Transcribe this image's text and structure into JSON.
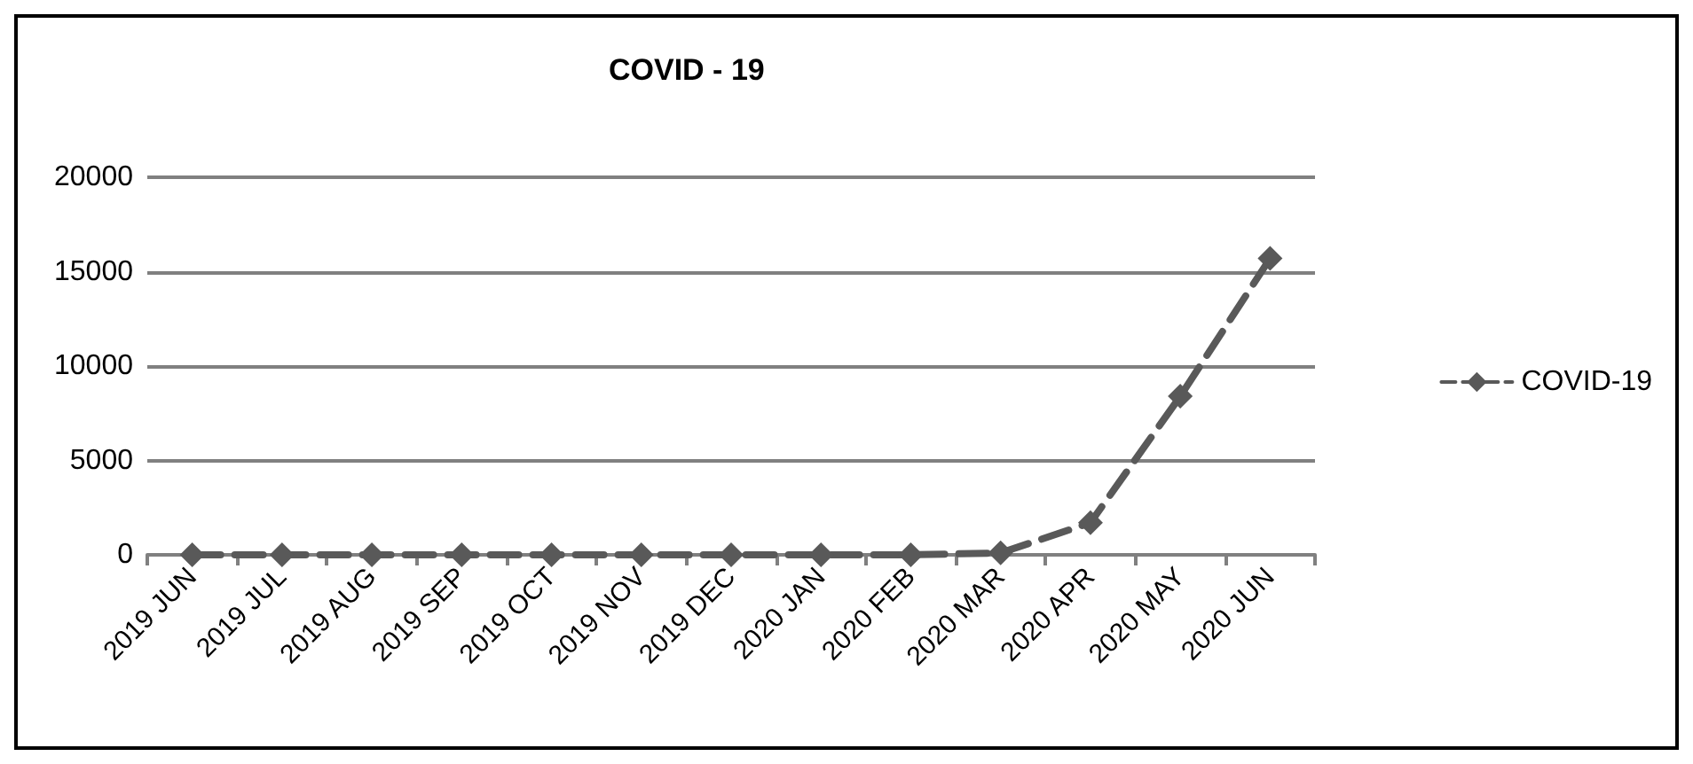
{
  "chart_data": {
    "type": "line",
    "title": "COVID - 19",
    "categories": [
      "2019 JUN",
      "2019 JUL",
      "2019 AUG",
      "2019 SEP",
      "2019 OCT",
      "2019 NOV",
      "2019 DEC",
      "2020 JAN",
      "2020 FEB",
      "2020 MAR",
      "2020 APR",
      "2020 MAY",
      "2020 JUN"
    ],
    "series": [
      {
        "name": "COVID-19",
        "color": "#595959",
        "values": [
          0,
          0,
          0,
          0,
          0,
          0,
          0,
          0,
          0,
          100,
          1700,
          8400,
          15700
        ]
      }
    ],
    "ylim": [
      0,
      20000
    ],
    "yticks": [
      0,
      5000,
      10000,
      15000,
      20000
    ],
    "grid": "y",
    "legend": "right",
    "marker": "diamond",
    "line_style": "dashed"
  }
}
